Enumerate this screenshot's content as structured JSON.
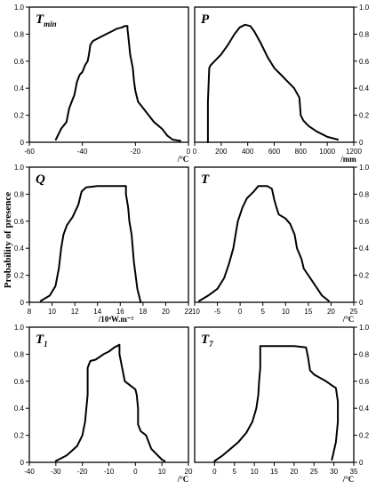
{
  "ylabel": "Probability of presence",
  "chart_data": [
    {
      "type": "line",
      "title_main": "T",
      "title_sub": "min",
      "xunit": "/°C",
      "xlim": [
        -60,
        0
      ],
      "ylim": [
        0,
        1
      ],
      "xticks": [
        "-60",
        "-40",
        "-20",
        "0"
      ],
      "xtick_values": [
        -60,
        -40,
        -20,
        0
      ],
      "yticks": [
        "0",
        "0.2",
        "0.4",
        "0.6",
        "0.8",
        "1.0"
      ],
      "ytick_values": [
        0,
        0.2,
        0.4,
        0.6,
        0.8,
        1.0
      ],
      "x": [
        -50,
        -48,
        -46,
        -45,
        -44,
        -43,
        -42,
        -41,
        -40,
        -39,
        -38,
        -37.5,
        -37,
        -36,
        -35,
        -33,
        -31,
        -29,
        -27,
        -25,
        -24,
        -23,
        -23,
        -22.5,
        -22,
        -21,
        -20.5,
        -20,
        -19,
        -17,
        -15,
        -13,
        -10,
        -8,
        -6,
        -3
      ],
      "y": [
        0.02,
        0.1,
        0.15,
        0.25,
        0.3,
        0.35,
        0.45,
        0.5,
        0.52,
        0.57,
        0.6,
        0.65,
        0.72,
        0.75,
        0.76,
        0.78,
        0.8,
        0.82,
        0.84,
        0.85,
        0.86,
        0.86,
        0.84,
        0.75,
        0.65,
        0.55,
        0.45,
        0.38,
        0.3,
        0.25,
        0.2,
        0.15,
        0.1,
        0.05,
        0.02,
        0.01
      ]
    },
    {
      "type": "line",
      "title_main": "P",
      "title_sub": "",
      "xunit": "/mm",
      "xlim": [
        0,
        1200
      ],
      "ylim": [
        0,
        1
      ],
      "xticks": [
        "0",
        "200",
        "400",
        "600",
        "800",
        "1000",
        "1200"
      ],
      "xtick_values": [
        0,
        200,
        400,
        600,
        800,
        1000,
        1200
      ],
      "yticks": [
        "0",
        "0.2",
        "0.4",
        "0.6",
        "0.8",
        "1.0"
      ],
      "ytick_values": [
        0,
        0.2,
        0.4,
        0.6,
        0.8,
        1.0
      ],
      "x": [
        100,
        100,
        110,
        120,
        150,
        200,
        250,
        300,
        340,
        380,
        420,
        450,
        500,
        550,
        600,
        650,
        700,
        750,
        790,
        800,
        820,
        860,
        920,
        1000,
        1080
      ],
      "y": [
        0,
        0.3,
        0.55,
        0.57,
        0.6,
        0.65,
        0.72,
        0.8,
        0.85,
        0.87,
        0.86,
        0.82,
        0.73,
        0.63,
        0.55,
        0.5,
        0.45,
        0.4,
        0.33,
        0.2,
        0.16,
        0.12,
        0.08,
        0.04,
        0.02
      ]
    },
    {
      "type": "line",
      "title_main": "Q",
      "title_sub": "",
      "xunit": "/10⁴W.m⁻²",
      "xlim": [
        8,
        22
      ],
      "ylim": [
        0,
        1
      ],
      "xticks": [
        "8",
        "10",
        "12",
        "14",
        "16",
        "18",
        "20",
        "22"
      ],
      "xtick_values": [
        8,
        10,
        12,
        14,
        16,
        18,
        20,
        22
      ],
      "yticks": [
        "0",
        "0.2",
        "0.4",
        "0.6",
        "0.8",
        "1.0"
      ],
      "ytick_values": [
        0,
        0.2,
        0.4,
        0.6,
        0.8,
        1.0
      ],
      "x": [
        9,
        9.8,
        10.3,
        10.6,
        10.8,
        11,
        11.3,
        11.8,
        12.3,
        12.6,
        13,
        14,
        15,
        16.5,
        16.5,
        16.7,
        16.8,
        17,
        17.2,
        17.5,
        17.8
      ],
      "y": [
        0.01,
        0.05,
        0.12,
        0.25,
        0.4,
        0.5,
        0.57,
        0.63,
        0.72,
        0.82,
        0.85,
        0.86,
        0.86,
        0.86,
        0.8,
        0.7,
        0.6,
        0.5,
        0.3,
        0.1,
        0
      ]
    },
    {
      "type": "line",
      "title_main": "T",
      "title_sub": "",
      "xunit": "/°C",
      "xlim": [
        -10,
        25
      ],
      "ylim": [
        0,
        1
      ],
      "xticks": [
        "-10",
        "-5",
        "0",
        "5",
        "10",
        "15",
        "20",
        "25"
      ],
      "xtick_values": [
        -10,
        -5,
        0,
        5,
        10,
        15,
        20,
        25
      ],
      "yticks": [
        "0",
        "0.2",
        "0.4",
        "0.6",
        "0.8",
        "1.0"
      ],
      "ytick_values": [
        0,
        0.2,
        0.4,
        0.6,
        0.8,
        1.0
      ],
      "x": [
        -9,
        -7,
        -5,
        -3.5,
        -2.5,
        -1.5,
        -1,
        -0.5,
        0.5,
        1.5,
        3,
        4,
        6,
        7,
        7.5,
        8,
        8.5,
        10,
        11,
        12,
        12.5,
        13.5,
        14,
        16,
        18,
        19.5
      ],
      "y": [
        0.01,
        0.05,
        0.1,
        0.18,
        0.28,
        0.4,
        0.5,
        0.6,
        0.7,
        0.77,
        0.82,
        0.86,
        0.86,
        0.84,
        0.76,
        0.7,
        0.65,
        0.62,
        0.58,
        0.5,
        0.4,
        0.32,
        0.25,
        0.15,
        0.05,
        0.01
      ]
    },
    {
      "type": "line",
      "title_main": "T",
      "title_sub": "1",
      "xunit": "/°C",
      "xlim": [
        -40,
        20
      ],
      "ylim": [
        0,
        1
      ],
      "xticks": [
        "-40",
        "-30",
        "-20",
        "-10",
        "0",
        "10",
        "20"
      ],
      "xtick_values": [
        -40,
        -30,
        -20,
        -10,
        0,
        10,
        20
      ],
      "yticks": [
        "0",
        "0.2",
        "0.4",
        "0.6",
        "0.8",
        "1.0"
      ],
      "ytick_values": [
        0,
        0.2,
        0.4,
        0.6,
        0.8,
        1.0
      ],
      "x": [
        -30,
        -26,
        -22,
        -20,
        -19,
        -18,
        -18,
        -17,
        -15,
        -12,
        -10,
        -8,
        -6,
        -6,
        -5,
        -4,
        -2,
        0,
        0.5,
        1,
        1,
        2,
        4,
        5,
        6,
        8,
        10,
        11
      ],
      "y": [
        0.01,
        0.05,
        0.12,
        0.2,
        0.3,
        0.5,
        0.7,
        0.75,
        0.76,
        0.8,
        0.82,
        0.85,
        0.87,
        0.8,
        0.7,
        0.6,
        0.57,
        0.54,
        0.5,
        0.4,
        0.28,
        0.23,
        0.2,
        0.15,
        0.1,
        0.06,
        0.02,
        0.01
      ]
    },
    {
      "type": "line",
      "title_main": "T",
      "title_sub": "7",
      "xunit": "/°C",
      "xlim": [
        -5,
        35
      ],
      "ylim": [
        0,
        1
      ],
      "xticks": [
        "0",
        "5",
        "10",
        "15",
        "20",
        "25",
        "30",
        "35"
      ],
      "xtick_values": [
        0,
        5,
        10,
        15,
        20,
        25,
        30,
        35
      ],
      "yticks": [
        "0",
        "0.2",
        "0.4",
        "0.6",
        "0.8",
        "1.0"
      ],
      "ytick_values": [
        0,
        0.2,
        0.4,
        0.6,
        0.8,
        1.0
      ],
      "x": [
        0,
        2,
        4,
        6,
        8,
        9.5,
        10.5,
        11,
        11.2,
        11.5,
        11.5,
        12,
        15,
        20,
        23,
        23.5,
        24,
        25,
        28,
        29.5,
        30.5,
        31,
        31,
        30.5,
        29.5
      ],
      "y": [
        0.01,
        0.05,
        0.1,
        0.15,
        0.22,
        0.3,
        0.4,
        0.5,
        0.6,
        0.7,
        0.86,
        0.86,
        0.86,
        0.86,
        0.85,
        0.78,
        0.68,
        0.65,
        0.6,
        0.57,
        0.55,
        0.45,
        0.3,
        0.15,
        0.02
      ]
    }
  ]
}
